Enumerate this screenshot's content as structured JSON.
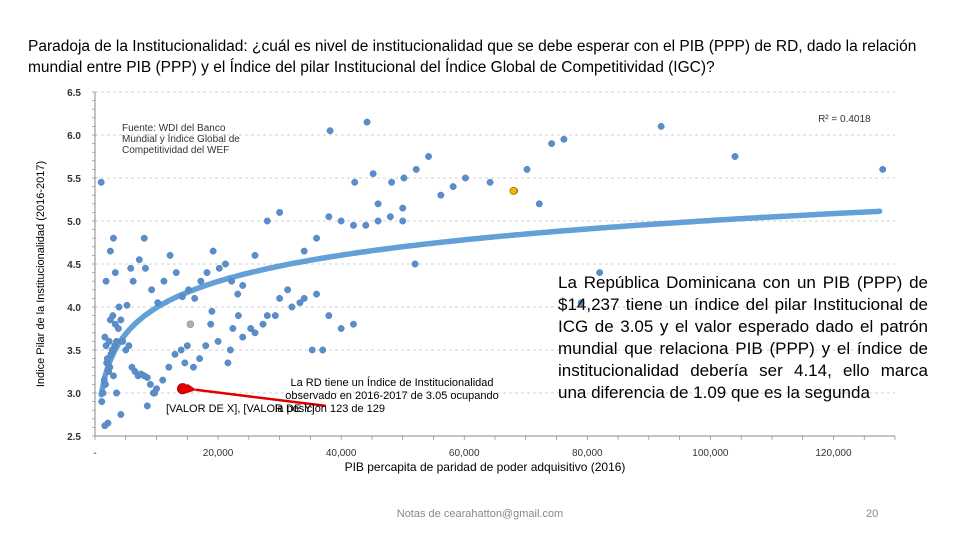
{
  "slide": {
    "title": "Paradoja de la Institucionalidad: ¿cuál es nivel de institucionalidad que se debe esperar con el PIB (PPP) de RD, dado la relación mundial entre PIB (PPP) y el Índice del pilar Institucional del Índice Global de Competitividad (IGC)?",
    "rd_note": "La República Dominicana con un PIB (PPP) de $14,237 tiene un índice del pilar Institucional de ICG de 3.05 y el valor esperado dado el patrón mundial que relaciona PIB (PPP) y el índice de institucionalidad debería ser 4.14, ello marca una diferencia de 1.09 que es la segunda",
    "footer_email": "Notas de cearahatton@gmail.com",
    "page_number": "20"
  },
  "colors": {
    "points": "#5b8ec9",
    "trend": "#5b9bd5",
    "rd_point": "#e00000",
    "highlight": "#f4b400",
    "grey_point": "#b0b0b0",
    "axis": "#888888"
  },
  "chart_data": {
    "type": "scatter",
    "xlabel": "PIB percapita de paridad de poder adquisitivo (2016)",
    "ylabel": "Indice Pilar de la Institucionalidad (2016-2017)",
    "xlim": [
      0,
      130000
    ],
    "ylim": [
      2.5,
      6.5
    ],
    "x_ticks": [
      0,
      20000,
      40000,
      60000,
      80000,
      100000,
      120000
    ],
    "x_tick_labels": [
      "-",
      "20,000",
      "40,000",
      "60,000",
      "80,000",
      "100,000",
      "120,000"
    ],
    "y_ticks": [
      2.5,
      3.0,
      3.5,
      4.0,
      4.5,
      5.0,
      5.5,
      6.0,
      6.5
    ],
    "y_tick_labels": [
      "2.5",
      "3.0",
      "3.5",
      "4.0",
      "4.5",
      "5.0",
      "5.5",
      "6.0",
      "6.5"
    ],
    "r2_label": "R² = 0.4018",
    "source_note": "Fuente: WDI del Banco Mundial y Índice Global de Competitividad del WEF",
    "rd_annotation": "La RD tiene un Índice de Institucionalidad observado en 2016-2017 de 3.05 ocupando la posición 123 de 129",
    "rd_value_label": "[VALOR DE X], [VALOR DE Y]",
    "trend": {
      "type": "log",
      "a": -0.06,
      "b": 0.44
    },
    "rd_point": {
      "x": 14237,
      "y": 3.05
    },
    "highlight_point": {
      "x": 68000,
      "y": 5.35
    },
    "grey_point": {
      "x": 15500,
      "y": 3.8
    },
    "series": [
      {
        "name": "Países",
        "points": [
          [
            1100,
            2.9
          ],
          [
            1300,
            3.0
          ],
          [
            1500,
            3.15
          ],
          [
            1700,
            3.1
          ],
          [
            1900,
            3.35
          ],
          [
            2000,
            3.4
          ],
          [
            2200,
            3.25
          ],
          [
            2400,
            3.3
          ],
          [
            2600,
            3.45
          ],
          [
            2800,
            3.5
          ],
          [
            3000,
            3.2
          ],
          [
            1800,
            3.55
          ],
          [
            2300,
            3.6
          ],
          [
            1600,
            3.65
          ],
          [
            3200,
            3.55
          ],
          [
            3500,
            3.6
          ],
          [
            2500,
            3.85
          ],
          [
            3300,
            3.8
          ],
          [
            2900,
            3.9
          ],
          [
            3800,
            3.75
          ],
          [
            4200,
            3.85
          ],
          [
            3900,
            4.0
          ],
          [
            4500,
            3.6
          ],
          [
            5000,
            3.5
          ],
          [
            5500,
            3.55
          ],
          [
            6000,
            3.3
          ],
          [
            6500,
            3.25
          ],
          [
            7000,
            3.2
          ],
          [
            7500,
            3.22
          ],
          [
            8000,
            3.2
          ],
          [
            8500,
            3.18
          ],
          [
            9000,
            3.1
          ],
          [
            9500,
            3.0
          ],
          [
            10000,
            3.05
          ],
          [
            11000,
            3.15
          ],
          [
            12000,
            3.3
          ],
          [
            13000,
            3.45
          ],
          [
            14000,
            3.5
          ],
          [
            15000,
            3.55
          ],
          [
            16000,
            3.3
          ],
          [
            17000,
            3.4
          ],
          [
            18000,
            3.55
          ],
          [
            20000,
            3.6
          ],
          [
            22000,
            3.5
          ],
          [
            24000,
            3.65
          ],
          [
            26000,
            3.7
          ],
          [
            28000,
            3.9
          ],
          [
            30000,
            4.1
          ],
          [
            32000,
            4.0
          ],
          [
            34000,
            4.1
          ],
          [
            36000,
            4.15
          ],
          [
            5200,
            4.02
          ],
          [
            6200,
            4.3
          ],
          [
            7200,
            4.55
          ],
          [
            8200,
            4.45
          ],
          [
            9200,
            4.2
          ],
          [
            10200,
            4.05
          ],
          [
            11200,
            4.3
          ],
          [
            12200,
            4.6
          ],
          [
            13200,
            4.4
          ],
          [
            14200,
            4.12
          ],
          [
            15200,
            4.2
          ],
          [
            16200,
            4.1
          ],
          [
            17200,
            4.3
          ],
          [
            18200,
            4.4
          ],
          [
            19200,
            4.65
          ],
          [
            20200,
            4.45
          ],
          [
            21200,
            4.5
          ],
          [
            22200,
            4.3
          ],
          [
            23200,
            4.15
          ],
          [
            8000,
            4.8
          ],
          [
            3300,
            4.4
          ],
          [
            5800,
            4.45
          ],
          [
            1800,
            4.3
          ],
          [
            2500,
            4.65
          ],
          [
            3000,
            4.8
          ],
          [
            4200,
            2.75
          ],
          [
            3500,
            3.0
          ],
          [
            2100,
            2.65
          ],
          [
            1600,
            2.62
          ],
          [
            8500,
            2.85
          ],
          [
            9700,
            3.0
          ],
          [
            14600,
            3.35
          ],
          [
            18800,
            3.8
          ],
          [
            21600,
            3.35
          ],
          [
            22400,
            3.75
          ],
          [
            23300,
            3.9
          ],
          [
            25300,
            3.75
          ],
          [
            27300,
            3.8
          ],
          [
            29300,
            3.9
          ],
          [
            31300,
            4.2
          ],
          [
            33300,
            4.05
          ],
          [
            35300,
            3.5
          ],
          [
            37000,
            3.5
          ],
          [
            38000,
            3.9
          ],
          [
            40000,
            3.75
          ],
          [
            42000,
            3.8
          ],
          [
            19000,
            3.95
          ],
          [
            24000,
            4.25
          ],
          [
            26000,
            4.6
          ],
          [
            28000,
            5.0
          ],
          [
            30000,
            5.1
          ],
          [
            34000,
            4.65
          ],
          [
            36000,
            4.8
          ],
          [
            38000,
            5.05
          ],
          [
            40000,
            5.0
          ],
          [
            42000,
            4.95
          ],
          [
            44000,
            4.95
          ],
          [
            46000,
            5.0
          ],
          [
            48000,
            5.05
          ],
          [
            50000,
            5.15
          ],
          [
            52000,
            4.5
          ],
          [
            38200,
            6.05
          ],
          [
            44200,
            6.15
          ],
          [
            42200,
            5.45
          ],
          [
            45200,
            5.55
          ],
          [
            48200,
            5.45
          ],
          [
            50200,
            5.5
          ],
          [
            52200,
            5.6
          ],
          [
            54200,
            5.75
          ],
          [
            56200,
            5.3
          ],
          [
            58200,
            5.4
          ],
          [
            60200,
            5.5
          ],
          [
            64200,
            5.45
          ],
          [
            68200,
            5.35
          ],
          [
            70200,
            5.6
          ],
          [
            72200,
            5.2
          ],
          [
            74200,
            5.9
          ],
          [
            76200,
            5.95
          ],
          [
            79000,
            4.05
          ],
          [
            82000,
            4.4
          ],
          [
            92000,
            6.1
          ],
          [
            104000,
            5.75
          ],
          [
            128000,
            5.6
          ],
          [
            1000,
            5.45
          ],
          [
            46000,
            5.2
          ],
          [
            50000,
            5.0
          ]
        ]
      }
    ]
  }
}
